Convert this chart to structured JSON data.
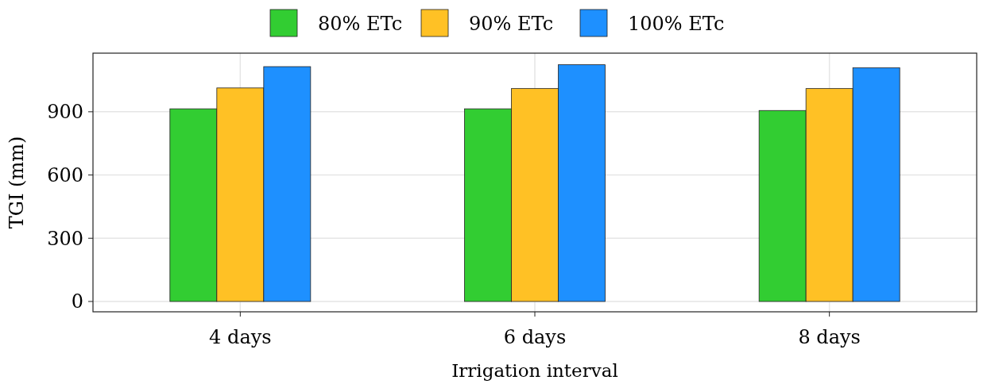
{
  "chart_data": {
    "type": "bar",
    "xlabel": "Irrigation interval",
    "ylabel": "TGI (mm)",
    "categories": [
      "4 days",
      "6 days",
      "8 days"
    ],
    "series": [
      {
        "name": "80% ETc",
        "color": "#32cd32",
        "values": [
          914,
          914,
          906
        ]
      },
      {
        "name": "90% ETc",
        "color": "#ffc125",
        "values": [
          1013,
          1010,
          1010
        ]
      },
      {
        "name": "100% ETc",
        "color": "#1e90ff",
        "values": [
          1114,
          1123,
          1109
        ]
      }
    ],
    "ylim": [
      -49,
      1178
    ],
    "yticks": [
      0,
      300,
      600,
      900
    ],
    "grid": true,
    "legend": "top"
  }
}
